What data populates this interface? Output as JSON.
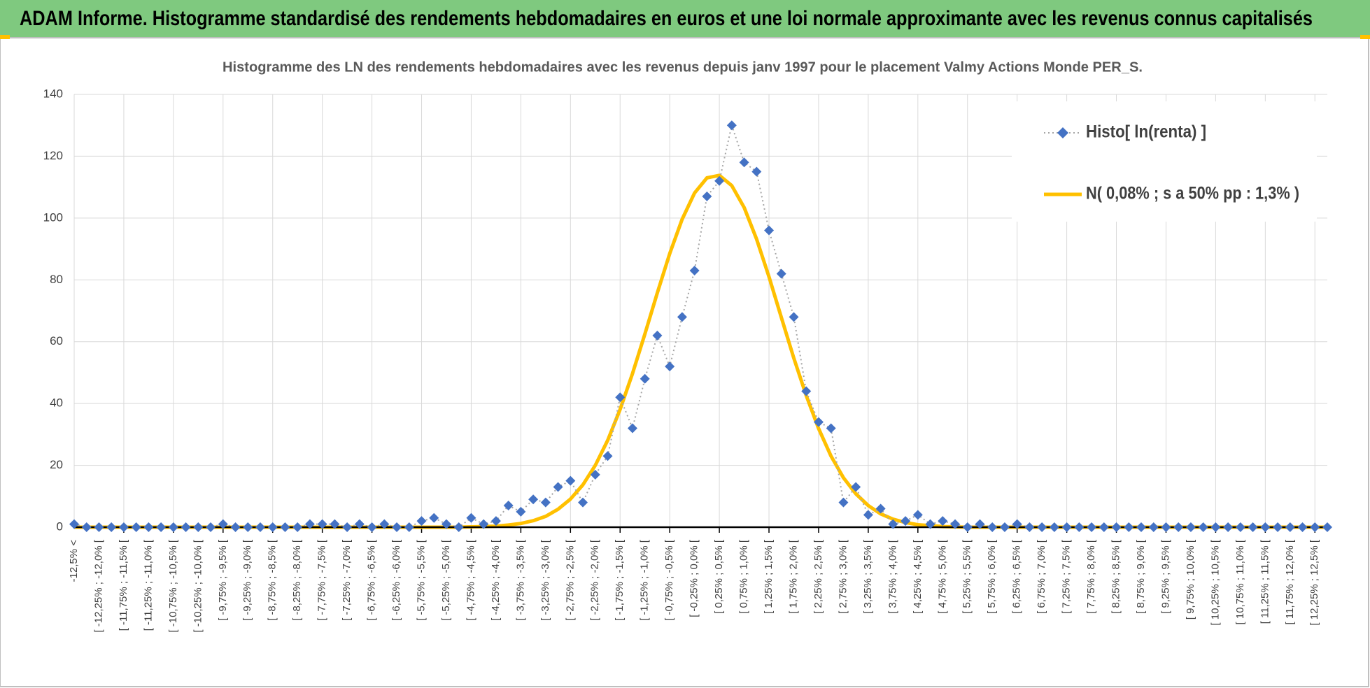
{
  "header": {
    "title": "ADAM Informe. Histogramme standardisé des rendements hebdomadaires en euros et une loi normale approximante avec les revenus connus capitalisés"
  },
  "chart_data": {
    "type": "line",
    "title": "Histogramme des LN des rendements hebdomadaires avec les revenus depuis janv 1997 pour le placement Valmy Actions Monde PER_S.",
    "categories": [
      "-12,5% <",
      null,
      "[ -12,25% ; -12,0% [",
      null,
      "[ -11,75% ; -11,5% [",
      null,
      "[ -11,25% ; -11,0% [",
      null,
      "[ -10,75% ; -10,5% [",
      null,
      "[ -10,25% ; -10,0% [",
      null,
      "[ -9,75% ; -9,5% [",
      null,
      "[ -9,25% ; -9,0% [",
      null,
      "[ -8,75% ; -8,5% [",
      null,
      "[ -8,25% ; -8,0% [",
      null,
      "[ -7,75% ; -7,5% [",
      null,
      "[ -7,25% ; -7,0% [",
      null,
      "[ -6,75% ; -6,5% [",
      null,
      "[ -6,25% ; -6,0% [",
      null,
      "[ -5,75% ; -5,5% [",
      null,
      "[ -5,25% ; -5,0% [",
      null,
      "[ -4,75% ; -4,5% [",
      null,
      "[ -4,25% ; -4,0% [",
      null,
      "[ -3,75% ; -3,5% [",
      null,
      "[ -3,25% ; -3,0% [",
      null,
      "[ -2,75% ; -2,5% [",
      null,
      "[ -2,25% ; -2,0% [",
      null,
      "[ -1,75% ; -1,5% [",
      null,
      "[ -1,25% ; -1,0% [",
      null,
      "[ -0,75% ; -0,5% [",
      null,
      "[ -0,25% ; 0,0% [",
      null,
      "[ 0,25% ; 0,5% [",
      null,
      "[ 0,75% ; 1,0% [",
      null,
      "[ 1,25% ; 1,5% [",
      null,
      "[ 1,75% ; 2,0% [",
      null,
      "[ 2,25% ; 2,5% [",
      null,
      "[ 2,75% ; 3,0% [",
      null,
      "[ 3,25% ; 3,5% [",
      null,
      "[ 3,75% ; 4,0% [",
      null,
      "[ 4,25% ; 4,5% [",
      null,
      "[ 4,75% ; 5,0% [",
      null,
      "[ 5,25% ; 5,5% [",
      null,
      "[ 5,75% ; 6,0% [",
      null,
      "[ 6,25% ; 6,5% [",
      null,
      "[ 6,75% ; 7,0% [",
      null,
      "[ 7,25% ; 7,5% [",
      null,
      "[ 7,75% ; 8,0% [",
      null,
      "[ 8,25% ; 8,5% [",
      null,
      "[ 8,75% ; 9,0% [",
      null,
      "[ 9,25% ; 9,5% [",
      null,
      "[ 9,75% ; 10,0% [",
      null,
      "[ 10,25% ; 10,5% [",
      null,
      "[ 10,75% ; 11,0% [",
      null,
      "[ 11,25% ; 11,5% [",
      null,
      "[ 11,75% ; 12,0% [",
      null,
      "[ 12,25% ; 12,5% [",
      null
    ],
    "series": [
      {
        "name": "Histo[ ln(renta) ]",
        "color": "#4472c4",
        "line_color": "#a6a6a6",
        "line_style": "dotted",
        "marker": "diamond",
        "values": [
          1,
          0,
          0,
          0,
          0,
          0,
          0,
          0,
          0,
          0,
          0,
          0,
          1,
          0,
          0,
          0,
          0,
          0,
          0,
          1,
          1,
          1,
          0,
          1,
          0,
          1,
          0,
          0,
          2,
          3,
          1,
          0,
          3,
          1,
          2,
          7,
          5,
          9,
          8,
          13,
          15,
          8,
          17,
          23,
          42,
          32,
          48,
          62,
          52,
          68,
          83,
          107,
          112,
          130,
          118,
          115,
          96,
          82,
          68,
          44,
          34,
          32,
          8,
          13,
          4,
          6,
          1,
          2,
          4,
          1,
          2,
          1,
          0,
          1,
          0,
          0,
          1,
          0,
          0,
          0,
          0,
          0,
          0,
          0,
          0,
          0,
          0,
          0,
          0,
          0,
          0,
          0,
          0,
          0,
          0,
          0,
          0,
          0,
          0,
          0,
          0,
          0
        ]
      },
      {
        "name": "N( 0,08% ; s a 50% pp : 1,3% )",
        "color": "#ffc000",
        "line_style": "solid",
        "marker": "none",
        "values": [
          0,
          0,
          0,
          0,
          0,
          0,
          0,
          0,
          0,
          0,
          0,
          0,
          0,
          0,
          0,
          0,
          0,
          0,
          0,
          0,
          0,
          0,
          0,
          0,
          0,
          0,
          0,
          0,
          0,
          0,
          0,
          0,
          0.1,
          0.2,
          0.3,
          0.7,
          1.2,
          2.1,
          3.5,
          5.8,
          9.1,
          13.7,
          20.0,
          28.1,
          38.1,
          49.7,
          62.5,
          75.8,
          88.5,
          99.6,
          108.1,
          113.0,
          113.8,
          110.5,
          103.4,
          93.2,
          81.0,
          67.8,
          54.7,
          42.6,
          31.9,
          23.0,
          16.0,
          10.8,
          7.0,
          4.3,
          2.6,
          1.5,
          0.8,
          0.5,
          0.2,
          0.1,
          0,
          0,
          0,
          0,
          0,
          0,
          0,
          0,
          0,
          0,
          0,
          0,
          0,
          0,
          0,
          0,
          0,
          0,
          0,
          0,
          0,
          0,
          0,
          0,
          0,
          0,
          0,
          0,
          0,
          0
        ]
      }
    ],
    "ylim": [
      0,
      140
    ],
    "yticks": [
      0,
      20,
      40,
      60,
      80,
      100,
      120,
      140
    ],
    "grid": true,
    "legend": "top-right"
  }
}
